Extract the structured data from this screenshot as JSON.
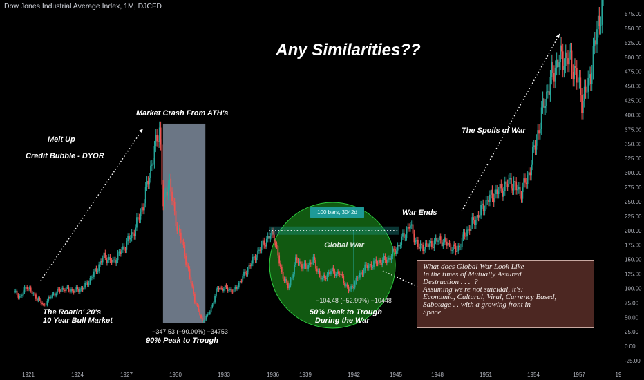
{
  "header": {
    "symbol_text": "Dow Jones Industrial Average Index, 1M, DJCFD"
  },
  "colors": {
    "background": "#000000",
    "up_candle": "#26a69a",
    "down_candle": "#ef5350",
    "crash_band": "#b2c4de",
    "war_circle": "#1fa31f",
    "info_box_bg": "#522a25",
    "measure_tag": "#1e9a97",
    "text": "#ffffff"
  },
  "annotations": {
    "title": "Any Similarities??",
    "market_crash": "Market Crash From ATH's",
    "melt_up": "Melt Up",
    "credit_bubble": "Credit Bubble - DYOR",
    "roarin_line1": "The Roarin' 20's",
    "roarin_line2": "10 Year Bull Market",
    "crash_measure": "−347.53 (−90.00%) −34753",
    "crash_label": "90% Peak to Trough",
    "war_measure_bars": "100 bars, 3042d",
    "global_war": "Global War",
    "war_measure": "−104.48 (−52.99%) −10448",
    "war_label_line1": "50% Peak to Trough",
    "war_label_line2": "During the War",
    "war_ends": "War Ends",
    "spoils": "The Spoils of War"
  },
  "info_box": {
    "line1": "What does Global War Look Like",
    "line2": "In the times of Mutually Assured",
    "line3": "Destruction . . .  ?",
    "line4": "",
    "line5": "Assuming we're not suicidal, it's:",
    "line6": "Economic, Cultural, Viral, Currency Based,",
    "line7": "Sabotage . . with a growing front in",
    "line8": "Space"
  },
  "chart_data": {
    "type": "candlestick",
    "title": "Dow Jones Industrial Average Index, 1M, DJCFD",
    "x_ticks": [
      "1921",
      "1924",
      "1927",
      "1930",
      "1933",
      "1936",
      "1939",
      "1942",
      "1945",
      "1948",
      "1951",
      "1954",
      "1957",
      "19"
    ],
    "y_ticks": [
      575,
      550,
      525,
      500,
      475,
      450,
      425,
      400,
      375,
      350,
      325,
      300,
      275,
      250,
      225,
      200,
      175,
      150,
      125,
      100,
      75,
      50,
      25,
      0,
      -25
    ],
    "y_tick_labels": [
      "575.00",
      "550.00",
      "525.00",
      "500.00",
      "475.00",
      "450.00",
      "425.00",
      "400.00",
      "375.00",
      "350.00",
      "325.00",
      "300.00",
      "275.00",
      "250.00",
      "225.00",
      "200.00",
      "175.00",
      "150.00",
      "125.00",
      "100.00",
      "75.00",
      "50.00",
      "25.00",
      "0.00",
      "-25.00"
    ],
    "ylim": [
      -35,
      610
    ],
    "xlim": [
      1920.0,
      1959.0
    ],
    "keypoints": [
      {
        "date": 1920.0,
        "close": 95
      },
      {
        "date": 1920.5,
        "close": 85
      },
      {
        "date": 1920.9,
        "close": 105
      },
      {
        "date": 1921.3,
        "close": 90
      },
      {
        "date": 1921.7,
        "close": 80
      },
      {
        "date": 1922.0,
        "close": 70
      },
      {
        "date": 1922.6,
        "close": 90
      },
      {
        "date": 1923.3,
        "close": 100
      },
      {
        "date": 1924.0,
        "close": 96
      },
      {
        "date": 1924.6,
        "close": 100
      },
      {
        "date": 1925.2,
        "close": 120
      },
      {
        "date": 1926.0,
        "close": 155
      },
      {
        "date": 1926.6,
        "close": 145
      },
      {
        "date": 1927.3,
        "close": 170
      },
      {
        "date": 1928.0,
        "close": 200
      },
      {
        "date": 1928.6,
        "close": 245
      },
      {
        "date": 1929.1,
        "close": 310
      },
      {
        "date": 1929.7,
        "close": 381
      },
      {
        "date": 1929.9,
        "close": 240
      },
      {
        "date": 1930.3,
        "close": 290
      },
      {
        "date": 1930.7,
        "close": 220
      },
      {
        "date": 1931.1,
        "close": 185
      },
      {
        "date": 1931.5,
        "close": 140
      },
      {
        "date": 1932.0,
        "close": 80
      },
      {
        "date": 1932.5,
        "close": 42
      },
      {
        "date": 1933.0,
        "close": 60
      },
      {
        "date": 1933.5,
        "close": 100
      },
      {
        "date": 1934.0,
        "close": 100
      },
      {
        "date": 1934.6,
        "close": 95
      },
      {
        "date": 1935.3,
        "close": 125
      },
      {
        "date": 1936.0,
        "close": 155
      },
      {
        "date": 1936.6,
        "close": 180
      },
      {
        "date": 1937.2,
        "close": 195
      },
      {
        "date": 1937.7,
        "close": 130
      },
      {
        "date": 1938.2,
        "close": 100
      },
      {
        "date": 1938.7,
        "close": 150
      },
      {
        "date": 1939.3,
        "close": 135
      },
      {
        "date": 1939.8,
        "close": 150
      },
      {
        "date": 1940.4,
        "close": 115
      },
      {
        "date": 1941.0,
        "close": 130
      },
      {
        "date": 1941.6,
        "close": 125
      },
      {
        "date": 1942.2,
        "close": 95
      },
      {
        "date": 1942.7,
        "close": 115
      },
      {
        "date": 1943.2,
        "close": 135
      },
      {
        "date": 1944.0,
        "close": 145
      },
      {
        "date": 1944.8,
        "close": 150
      },
      {
        "date": 1945.5,
        "close": 175
      },
      {
        "date": 1946.2,
        "close": 210
      },
      {
        "date": 1946.8,
        "close": 170
      },
      {
        "date": 1947.5,
        "close": 175
      },
      {
        "date": 1948.2,
        "close": 185
      },
      {
        "date": 1948.8,
        "close": 175
      },
      {
        "date": 1949.3,
        "close": 165
      },
      {
        "date": 1950.0,
        "close": 200
      },
      {
        "date": 1950.7,
        "close": 225
      },
      {
        "date": 1951.4,
        "close": 255
      },
      {
        "date": 1952.2,
        "close": 270
      },
      {
        "date": 1952.9,
        "close": 285
      },
      {
        "date": 1953.5,
        "close": 265
      },
      {
        "date": 1954.0,
        "close": 290
      },
      {
        "date": 1954.6,
        "close": 360
      },
      {
        "date": 1955.0,
        "close": 410
      },
      {
        "date": 1955.5,
        "close": 460
      },
      {
        "date": 1956.0,
        "close": 495
      },
      {
        "date": 1956.6,
        "close": 500
      },
      {
        "date": 1957.1,
        "close": 480
      },
      {
        "date": 1957.6,
        "close": 425
      },
      {
        "date": 1958.0,
        "close": 450
      },
      {
        "date": 1958.5,
        "close": 530
      },
      {
        "date": 1958.9,
        "close": 595
      }
    ],
    "crash_band_dates": [
      1929.9,
      1932.7
    ],
    "war_circle_center_date": 1941.1,
    "war_circle_center_value": 140,
    "measure_line_value": 200,
    "measure_line_dates": [
      1936.9,
      1945.5
    ],
    "grid": false,
    "legend": "none"
  }
}
